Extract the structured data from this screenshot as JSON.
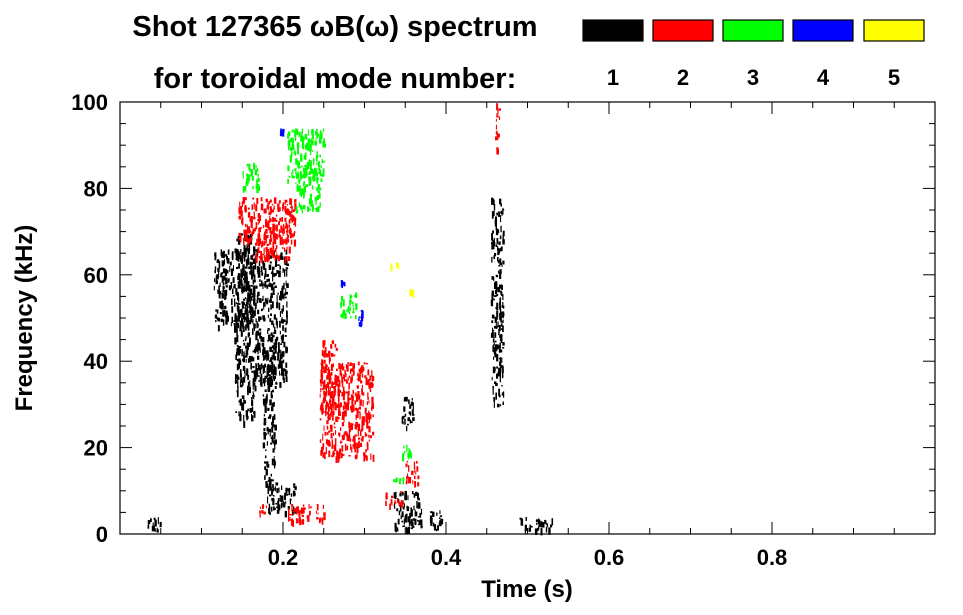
{
  "chart_data": {
    "type": "scatter",
    "title_line1": "Shot 127365 ωB(ω) spectrum",
    "title_line2": "for toroidal mode number:",
    "xlabel": "Time (s)",
    "ylabel": "Frequency (kHz)",
    "xlim": [
      0.0,
      1.0
    ],
    "ylim": [
      0,
      100
    ],
    "x_ticks": [
      {
        "value": 0.2,
        "label": "0.2"
      },
      {
        "value": 0.4,
        "label": "0.4"
      },
      {
        "value": 0.6,
        "label": "0.6"
      },
      {
        "value": 0.8,
        "label": "0.8"
      }
    ],
    "y_ticks": [
      {
        "value": 0,
        "label": "0"
      },
      {
        "value": 20,
        "label": "20"
      },
      {
        "value": 40,
        "label": "40"
      },
      {
        "value": 60,
        "label": "60"
      },
      {
        "value": 80,
        "label": "80"
      },
      {
        "value": 100,
        "label": "100"
      }
    ],
    "legend": "top-right",
    "series": [
      {
        "name": "1",
        "color": "#000000",
        "regions": [
          {
            "t": [
              0.115,
              0.165
            ],
            "f": [
              48,
              66
            ]
          },
          {
            "t": [
              0.14,
              0.165
            ],
            "f": [
              26,
              70
            ]
          },
          {
            "t": [
              0.165,
              0.205
            ],
            "f": [
              35,
              66
            ]
          },
          {
            "t": [
              0.175,
              0.19
            ],
            "f": [
              12,
              40
            ]
          },
          {
            "t": [
              0.18,
              0.215
            ],
            "f": [
              5,
              12
            ]
          },
          {
            "t": [
              0.455,
              0.47
            ],
            "f": [
              30,
              78
            ]
          },
          {
            "t": [
              0.335,
              0.37
            ],
            "f": [
              1,
              10
            ]
          },
          {
            "t": [
              0.345,
              0.36
            ],
            "f": [
              25,
              32
            ]
          },
          {
            "t": [
              0.38,
              0.395
            ],
            "f": [
              1,
              6
            ]
          },
          {
            "t": [
              0.03,
              0.05
            ],
            "f": [
              1,
              4
            ]
          },
          {
            "t": [
              0.49,
              0.53
            ],
            "f": [
              1,
              4
            ]
          }
        ]
      },
      {
        "name": "2",
        "color": "#ff0000",
        "regions": [
          {
            "t": [
              0.145,
              0.215
            ],
            "f": [
              68,
              78
            ]
          },
          {
            "t": [
              0.165,
              0.21
            ],
            "f": [
              64,
              72
            ]
          },
          {
            "t": [
              0.245,
              0.31
            ],
            "f": [
              18,
              40
            ]
          },
          {
            "t": [
              0.245,
              0.265
            ],
            "f": [
              28,
              45
            ]
          },
          {
            "t": [
              0.325,
              0.345
            ],
            "f": [
              7,
              10
            ]
          },
          {
            "t": [
              0.35,
              0.365
            ],
            "f": [
              12,
              17
            ]
          },
          {
            "t": [
              0.17,
              0.18
            ],
            "f": [
              5,
              8
            ]
          },
          {
            "t": [
              0.205,
              0.25
            ],
            "f": [
              3,
              7
            ]
          },
          {
            "t": [
              0.46,
              0.465
            ],
            "f": [
              89,
              100
            ]
          }
        ]
      },
      {
        "name": "3",
        "color": "#00ff00",
        "regions": [
          {
            "t": [
              0.205,
              0.25
            ],
            "f": [
              82,
              94
            ]
          },
          {
            "t": [
              0.215,
              0.245
            ],
            "f": [
              75,
              85
            ]
          },
          {
            "t": [
              0.15,
              0.17
            ],
            "f": [
              80,
              86
            ]
          },
          {
            "t": [
              0.27,
              0.29
            ],
            "f": [
              50,
              56
            ]
          },
          {
            "t": [
              0.335,
              0.35
            ],
            "f": [
              12,
              14
            ]
          },
          {
            "t": [
              0.345,
              0.36
            ],
            "f": [
              18,
              21
            ]
          }
        ]
      },
      {
        "name": "4",
        "color": "#0000ff",
        "regions": [
          {
            "t": [
              0.29,
              0.3
            ],
            "f": [
              49,
              52
            ]
          },
          {
            "t": [
              0.27,
              0.275
            ],
            "f": [
              58,
              59
            ]
          },
          {
            "t": [
              0.195,
              0.2
            ],
            "f": [
              93,
              94
            ]
          }
        ]
      },
      {
        "name": "5",
        "color": "#ffff00",
        "regions": [
          {
            "t": [
              0.33,
              0.34
            ],
            "f": [
              62,
              63
            ]
          },
          {
            "t": [
              0.355,
              0.36
            ],
            "f": [
              56,
              57
            ]
          }
        ]
      }
    ]
  }
}
